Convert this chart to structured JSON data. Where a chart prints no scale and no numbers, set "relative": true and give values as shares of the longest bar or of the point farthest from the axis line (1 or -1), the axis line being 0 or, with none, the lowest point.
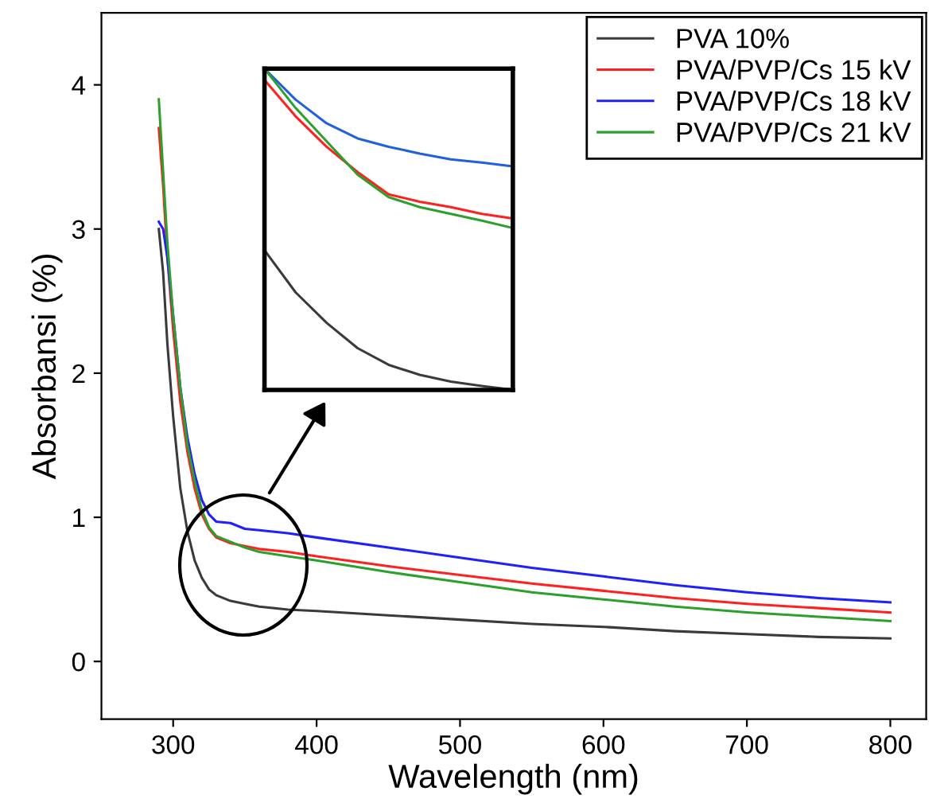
{
  "chart_data": [
    {
      "type": "line",
      "xlabel": "Wavelength (nm)",
      "ylabel": "Absorbansi (%)",
      "xlim": [
        250,
        825
      ],
      "ylim": [
        -0.4,
        4.5
      ],
      "xticks": [
        300,
        400,
        500,
        600,
        700,
        800
      ],
      "yticks": [
        0,
        1,
        2,
        3,
        4
      ],
      "grid": false,
      "legend": "top right",
      "marker": "none",
      "line_style": "solid",
      "series": [
        {
          "name": "PVA 10%",
          "color": "#3a3a3a",
          "x": [
            290,
            293,
            296,
            300,
            305,
            310,
            315,
            320,
            325,
            330,
            340,
            350,
            360,
            380,
            400,
            450,
            500,
            550,
            600,
            650,
            700,
            750,
            800
          ],
          "values": [
            3.0,
            2.7,
            2.2,
            1.7,
            1.2,
            0.9,
            0.7,
            0.58,
            0.5,
            0.46,
            0.42,
            0.4,
            0.38,
            0.36,
            0.35,
            0.32,
            0.29,
            0.26,
            0.24,
            0.21,
            0.19,
            0.17,
            0.16
          ]
        },
        {
          "name": "PVA/PVP/Cs 15 kV",
          "color": "#ff2020",
          "x": [
            290,
            293,
            296,
            300,
            305,
            310,
            315,
            320,
            325,
            330,
            340,
            350,
            360,
            380,
            400,
            450,
            500,
            550,
            600,
            650,
            700,
            750,
            800
          ],
          "values": [
            3.7,
            3.3,
            2.8,
            2.3,
            1.8,
            1.45,
            1.2,
            1.02,
            0.92,
            0.86,
            0.82,
            0.8,
            0.78,
            0.76,
            0.73,
            0.66,
            0.6,
            0.54,
            0.49,
            0.44,
            0.4,
            0.37,
            0.34
          ]
        },
        {
          "name": "PVA/PVP/Cs 18 kV",
          "color": "#2020ff",
          "x": [
            290,
            293,
            296,
            300,
            305,
            310,
            315,
            320,
            325,
            330,
            340,
            350,
            360,
            380,
            400,
            450,
            500,
            550,
            600,
            650,
            700,
            750,
            800
          ],
          "values": [
            3.05,
            3.0,
            2.8,
            2.4,
            1.9,
            1.55,
            1.3,
            1.12,
            1.02,
            0.97,
            0.96,
            0.92,
            0.91,
            0.89,
            0.86,
            0.79,
            0.72,
            0.65,
            0.59,
            0.53,
            0.48,
            0.44,
            0.41
          ]
        },
        {
          "name": "PVA/PVP/Cs 21 kV",
          "color": "#2ca02c",
          "x": [
            290,
            293,
            296,
            300,
            305,
            310,
            315,
            320,
            325,
            330,
            340,
            350,
            360,
            380,
            400,
            450,
            500,
            550,
            600,
            650,
            700,
            750,
            800
          ],
          "values": [
            3.9,
            3.4,
            2.9,
            2.4,
            1.9,
            1.5,
            1.25,
            1.05,
            0.93,
            0.87,
            0.83,
            0.79,
            0.76,
            0.73,
            0.7,
            0.62,
            0.55,
            0.48,
            0.43,
            0.38,
            0.34,
            0.31,
            0.28
          ]
        }
      ]
    },
    {
      "type": "line",
      "relative": true,
      "grid": false,
      "marker": "none",
      "line_style": "solid",
      "categories": [
        null,
        null,
        null,
        null,
        null,
        null,
        null,
        null,
        null
      ],
      "series": [
        {
          "color": "#3a3a3a",
          "values": [
            0.435,
            0.304,
            0.209,
            0.13,
            0.078,
            0.047,
            0.026,
            0.012,
            0.0
          ]
        },
        {
          "color": "#ff2020",
          "values": [
            0.965,
            0.852,
            0.757,
            0.678,
            0.609,
            0.586,
            0.569,
            0.548,
            0.534
          ]
        },
        {
          "color": "#2060e0",
          "values": [
            1.0,
            0.904,
            0.83,
            0.783,
            0.757,
            0.736,
            0.718,
            0.708,
            0.696
          ]
        },
        {
          "color": "#2ca02c",
          "values": [
            1.0,
            0.878,
            0.774,
            0.67,
            0.6,
            0.569,
            0.548,
            0.527,
            0.504
          ]
        }
      ]
    }
  ]
}
